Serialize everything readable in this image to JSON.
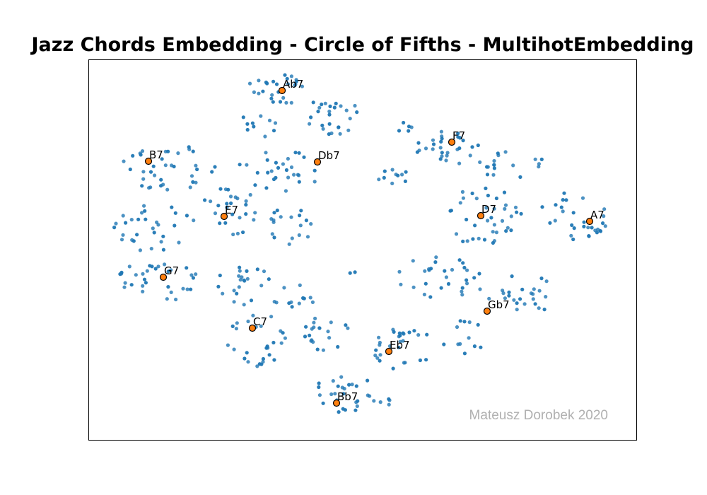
{
  "chart_data": {
    "type": "scatter",
    "title": "Jazz Chords Embedding - Circle of Fifths - MultihotEmbedding",
    "watermark": "Mateusz Dorobek 2020",
    "xlim": [
      0,
      775
    ],
    "ylim": [
      0,
      538
    ],
    "grid": false,
    "axis_ticks": false,
    "point_color": "#1f77b4",
    "highlight_color": "#ff7f0e",
    "highlighted": [
      {
        "label": "Ab7",
        "x": 274,
        "y": 494
      },
      {
        "label": "F7",
        "x": 514,
        "y": 421
      },
      {
        "label": "B7",
        "x": 85,
        "y": 394
      },
      {
        "label": "Db7",
        "x": 324,
        "y": 393
      },
      {
        "label": "E7",
        "x": 192,
        "y": 316
      },
      {
        "label": "D7",
        "x": 555,
        "y": 317
      },
      {
        "label": "A7",
        "x": 709,
        "y": 309
      },
      {
        "label": "G7",
        "x": 106,
        "y": 230
      },
      {
        "label": "Gb7",
        "x": 564,
        "y": 182
      },
      {
        "label": "C7",
        "x": 232,
        "y": 158
      },
      {
        "label": "Eb7",
        "x": 425,
        "y": 125
      },
      {
        "label": "Bb7",
        "x": 351,
        "y": 52
      }
    ],
    "clusters": [
      {
        "cx": 264,
        "cy": 495,
        "rx": 42,
        "ry": 24,
        "n": 26
      },
      {
        "cx": 340,
        "cy": 455,
        "rx": 48,
        "ry": 28,
        "n": 26
      },
      {
        "cx": 240,
        "cy": 445,
        "rx": 30,
        "ry": 18,
        "n": 10
      },
      {
        "cx": 512,
        "cy": 415,
        "rx": 50,
        "ry": 26,
        "n": 28
      },
      {
        "cx": 452,
        "cy": 440,
        "rx": 14,
        "ry": 14,
        "n": 5
      },
      {
        "cx": 600,
        "cy": 385,
        "rx": 50,
        "ry": 24,
        "n": 18
      },
      {
        "cx": 115,
        "cy": 385,
        "rx": 70,
        "ry": 32,
        "n": 36
      },
      {
        "cx": 270,
        "cy": 380,
        "rx": 60,
        "ry": 30,
        "n": 28
      },
      {
        "cx": 430,
        "cy": 375,
        "rx": 25,
        "ry": 16,
        "n": 10
      },
      {
        "cx": 195,
        "cy": 325,
        "rx": 45,
        "ry": 38,
        "n": 26
      },
      {
        "cx": 95,
        "cy": 300,
        "rx": 60,
        "ry": 38,
        "n": 30
      },
      {
        "cx": 285,
        "cy": 300,
        "rx": 40,
        "ry": 30,
        "n": 18
      },
      {
        "cx": 560,
        "cy": 315,
        "rx": 55,
        "ry": 45,
        "n": 34
      },
      {
        "cx": 685,
        "cy": 315,
        "rx": 50,
        "ry": 35,
        "n": 30
      },
      {
        "cx": 100,
        "cy": 225,
        "rx": 65,
        "ry": 30,
        "n": 32
      },
      {
        "cx": 220,
        "cy": 220,
        "rx": 40,
        "ry": 30,
        "n": 22
      },
      {
        "cx": 290,
        "cy": 200,
        "rx": 30,
        "ry": 20,
        "n": 12
      },
      {
        "cx": 500,
        "cy": 230,
        "rx": 70,
        "ry": 30,
        "n": 30
      },
      {
        "cx": 610,
        "cy": 205,
        "rx": 50,
        "ry": 30,
        "n": 24
      },
      {
        "cx": 240,
        "cy": 140,
        "rx": 45,
        "ry": 40,
        "n": 28
      },
      {
        "cx": 335,
        "cy": 150,
        "rx": 40,
        "ry": 25,
        "n": 20
      },
      {
        "cx": 440,
        "cy": 130,
        "rx": 50,
        "ry": 30,
        "n": 28
      },
      {
        "cx": 530,
        "cy": 145,
        "rx": 30,
        "ry": 30,
        "n": 12
      },
      {
        "cx": 360,
        "cy": 65,
        "rx": 45,
        "ry": 30,
        "n": 26
      },
      {
        "cx": 415,
        "cy": 55,
        "rx": 12,
        "ry": 14,
        "n": 5
      },
      {
        "cx": 372,
        "cy": 236,
        "rx": 8,
        "ry": 6,
        "n": 2
      },
      {
        "cx": 570,
        "cy": 288,
        "rx": 14,
        "ry": 10,
        "n": 4
      }
    ]
  }
}
